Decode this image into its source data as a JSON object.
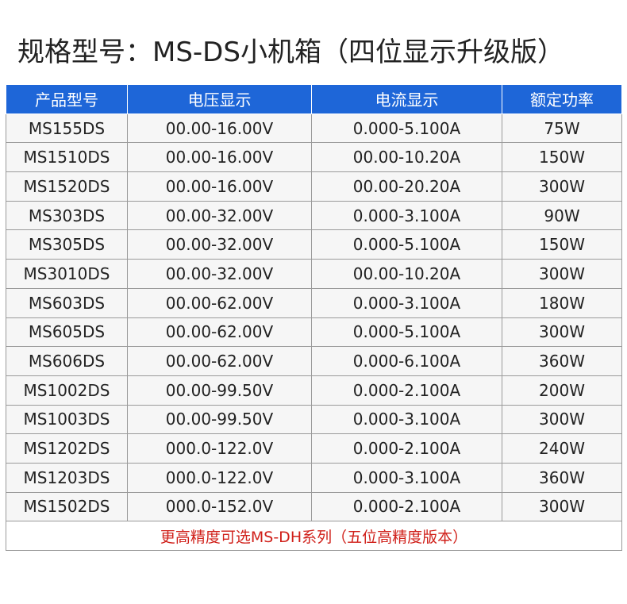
{
  "header": {
    "title": "规格型号：MS-DS小机箱（四位显示升级版）"
  },
  "table": {
    "columns": [
      "产品型号",
      "电压显示",
      "电流显示",
      "额定功率"
    ],
    "rows": [
      [
        "MS155DS",
        "00.00-16.00V",
        "0.000-5.100A",
        "75W"
      ],
      [
        "MS1510DS",
        "00.00-16.00V",
        "00.00-10.20A",
        "150W"
      ],
      [
        "MS1520DS",
        "00.00-16.00V",
        "00.00-20.20A",
        "300W"
      ],
      [
        "MS303DS",
        "00.00-32.00V",
        "0.000-3.100A",
        "90W"
      ],
      [
        "MS305DS",
        "00.00-32.00V",
        "0.000-5.100A",
        "150W"
      ],
      [
        "MS3010DS",
        "00.00-32.00V",
        "00.00-10.20A",
        "300W"
      ],
      [
        "MS603DS",
        "00.00-62.00V",
        "0.000-3.100A",
        "180W"
      ],
      [
        "MS605DS",
        "00.00-62.00V",
        "0.000-5.100A",
        "300W"
      ],
      [
        "MS606DS",
        "00.00-62.00V",
        "0.000-6.100A",
        "360W"
      ],
      [
        "MS1002DS",
        "00.00-99.50V",
        "0.000-2.100A",
        "200W"
      ],
      [
        "MS1003DS",
        "00.00-99.50V",
        "0.000-3.100A",
        "300W"
      ],
      [
        "MS1202DS",
        "000.0-122.0V",
        "0.000-2.100A",
        "240W"
      ],
      [
        "MS1203DS",
        "000.0-122.0V",
        "0.000-3.100A",
        "360W"
      ],
      [
        "MS1502DS",
        "000.0-152.0V",
        "0.000-2.100A",
        "300W"
      ]
    ],
    "note": "更高精度可选MS-DH系列（五位高精度版本）"
  }
}
